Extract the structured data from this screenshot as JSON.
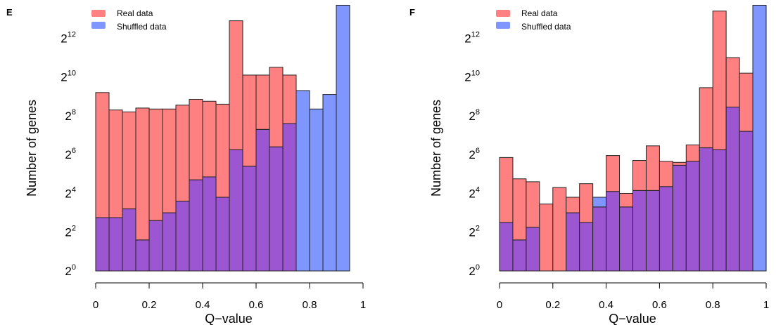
{
  "colors": {
    "real": "#ff8080",
    "shuffled": "#8096ff",
    "overlap": "#9c56d2",
    "border": "#222222"
  },
  "chart_data": [
    {
      "type": "bar",
      "panel_label": "E",
      "xlabel": "Q−value",
      "ylabel": "Number of genes",
      "xlim": [
        0,
        1
      ],
      "ylim_log2": [
        0,
        13.5
      ],
      "y_scale": "log2",
      "bin_width": 0.05,
      "x_ticks": [
        "0",
        "0.2",
        "0.4",
        "0.6",
        "0.8",
        "1"
      ],
      "y_tick_base": "2",
      "y_tick_exponents": [
        "0",
        "2",
        "4",
        "6",
        "8",
        "10",
        "12"
      ],
      "legend": [
        "Real data",
        "Shuffled data"
      ],
      "legend_position": "top-left",
      "bins_left_edge": [
        0.0,
        0.05,
        0.1,
        0.15,
        0.2,
        0.25,
        0.3,
        0.35,
        0.4,
        0.45,
        0.5,
        0.55,
        0.6,
        0.65,
        0.7,
        0.75,
        0.8,
        0.85,
        0.9,
        0.95
      ],
      "series": [
        {
          "name": "Real data",
          "values_log2": [
            9.2,
            8.3,
            8.2,
            8.4,
            8.35,
            8.35,
            8.55,
            8.85,
            8.75,
            8.6,
            12.9,
            10.1,
            10.1,
            10.5,
            10.1,
            0,
            0,
            0,
            0,
            0
          ]
        },
        {
          "name": "Shuffled data",
          "values_log2": [
            2.75,
            2.75,
            3.2,
            1.6,
            2.6,
            3.0,
            3.6,
            4.7,
            4.85,
            3.8,
            6.25,
            5.4,
            7.3,
            6.4,
            7.6,
            9.3,
            8.35,
            9.1,
            13.7,
            0
          ]
        }
      ]
    },
    {
      "type": "bar",
      "panel_label": "F",
      "xlabel": "Q−value",
      "ylabel": "Number of genes",
      "xlim": [
        0,
        1
      ],
      "ylim_log2": [
        0,
        13.5
      ],
      "y_scale": "log2",
      "bin_width": 0.05,
      "x_ticks": [
        "0",
        "0.2",
        "0.4",
        "0.6",
        "0.8",
        "1"
      ],
      "y_tick_base": "2",
      "y_tick_exponents": [
        "0",
        "2",
        "4",
        "6",
        "8",
        "10",
        "12"
      ],
      "legend": [
        "Real data",
        "Shuffled data"
      ],
      "legend_position": "top-left",
      "bins_left_edge": [
        0.0,
        0.05,
        0.1,
        0.15,
        0.2,
        0.25,
        0.3,
        0.35,
        0.4,
        0.45,
        0.5,
        0.55,
        0.6,
        0.65,
        0.7,
        0.75,
        0.8,
        0.85,
        0.9,
        0.95
      ],
      "series": [
        {
          "name": "Real data",
          "values_log2": [
            5.85,
            4.75,
            4.6,
            3.45,
            4.3,
            3.8,
            4.5,
            3.3,
            5.95,
            4.0,
            5.7,
            6.45,
            5.65,
            5.6,
            6.5,
            9.45,
            13.4,
            11.0,
            10.2,
            0
          ]
        },
        {
          "name": "Shuffled data",
          "values_log2": [
            2.5,
            1.6,
            2.25,
            0,
            0,
            3.0,
            2.5,
            3.8,
            4.1,
            3.3,
            4.15,
            4.15,
            4.35,
            5.45,
            5.65,
            6.35,
            6.25,
            8.45,
            7.2,
            13.7
          ]
        }
      ]
    }
  ]
}
